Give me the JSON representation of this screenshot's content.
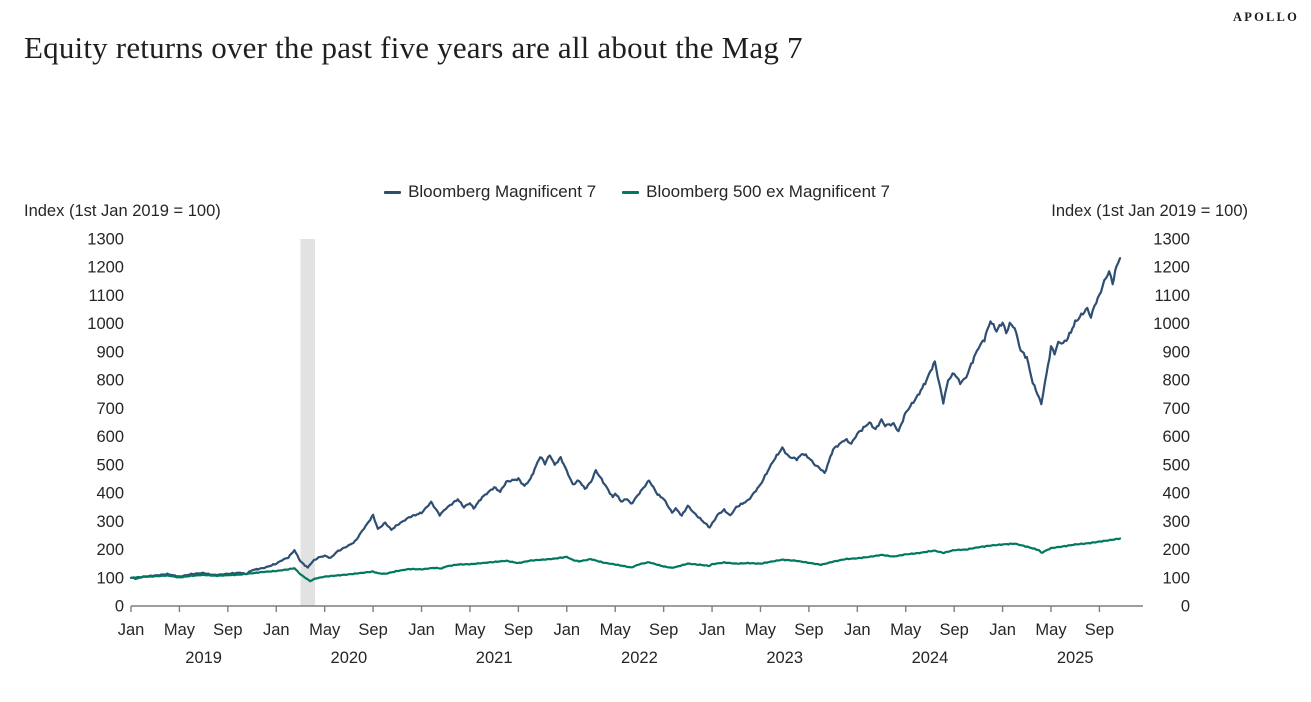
{
  "header": {
    "logo": "APOLLO",
    "title": "Equity returns over the past five years are all about the Mag 7"
  },
  "chart_data": {
    "type": "line",
    "title": "Equity returns over the past five years are all about the Mag 7",
    "y_axis": {
      "label": "Index (1st Jan 2019 = 100)",
      "min": 0,
      "max": 1300,
      "step": 100,
      "labels_on_both_sides": true
    },
    "x_axis": {
      "years": [
        "2019",
        "2020",
        "2021",
        "2022",
        "2023",
        "2024",
        "2025"
      ],
      "month_labels": [
        "Jan",
        "May",
        "Sep"
      ],
      "month_offsets": [
        0,
        4,
        8
      ],
      "domain_months": 83.6
    },
    "grid": false,
    "legend_position": "top-center",
    "recession_band": {
      "from_month": 14.0,
      "to_month": 15.2,
      "color": "#e2e2e2",
      "meaning": "Covid recession shading Feb-Mar 2020"
    },
    "axis_color": "#7f7f7f",
    "series": [
      {
        "name": "Bloomberg Magnificent 7",
        "color": "#2f4e73",
        "points": [
          [
            0,
            100
          ],
          [
            0.5,
            97
          ],
          [
            1,
            104
          ],
          [
            2,
            108
          ],
          [
            3,
            113
          ],
          [
            4,
            104
          ],
          [
            5,
            113
          ],
          [
            6,
            117
          ],
          [
            6.5,
            112
          ],
          [
            7,
            110
          ],
          [
            8,
            114
          ],
          [
            9,
            118
          ],
          [
            9.5,
            113
          ],
          [
            10,
            127
          ],
          [
            11,
            135
          ],
          [
            12,
            150
          ],
          [
            12.5,
            163
          ],
          [
            13,
            172
          ],
          [
            13.5,
            198
          ],
          [
            14,
            158
          ],
          [
            14.6,
            136
          ],
          [
            15,
            158
          ],
          [
            15.5,
            172
          ],
          [
            16,
            178
          ],
          [
            16.5,
            170
          ],
          [
            17,
            192
          ],
          [
            18,
            215
          ],
          [
            18.5,
            228
          ],
          [
            19,
            260
          ],
          [
            19.5,
            290
          ],
          [
            20,
            322
          ],
          [
            20.4,
            272
          ],
          [
            21,
            295
          ],
          [
            21.5,
            270
          ],
          [
            22,
            287
          ],
          [
            23,
            315
          ],
          [
            24,
            330
          ],
          [
            24.8,
            368
          ],
          [
            25.5,
            322
          ],
          [
            26,
            345
          ],
          [
            27,
            378
          ],
          [
            27.5,
            350
          ],
          [
            28,
            365
          ],
          [
            28.3,
            345
          ],
          [
            29,
            385
          ],
          [
            30,
            420
          ],
          [
            30.5,
            405
          ],
          [
            31,
            440
          ],
          [
            32,
            450
          ],
          [
            32.5,
            425
          ],
          [
            33,
            450
          ],
          [
            33.8,
            530
          ],
          [
            34.2,
            505
          ],
          [
            34.6,
            535
          ],
          [
            35,
            500
          ],
          [
            35.5,
            525
          ],
          [
            36,
            478
          ],
          [
            36.5,
            430
          ],
          [
            37,
            445
          ],
          [
            37.5,
            415
          ],
          [
            38,
            440
          ],
          [
            38.4,
            480
          ],
          [
            39,
            440
          ],
          [
            39.8,
            385
          ],
          [
            40,
            400
          ],
          [
            40.5,
            370
          ],
          [
            41,
            380
          ],
          [
            41.3,
            360
          ],
          [
            42,
            400
          ],
          [
            42.8,
            445
          ],
          [
            43.5,
            395
          ],
          [
            44,
            380
          ],
          [
            44.7,
            330
          ],
          [
            45,
            345
          ],
          [
            45.5,
            320
          ],
          [
            46,
            355
          ],
          [
            46.5,
            330
          ],
          [
            47,
            310
          ],
          [
            47.8,
            278
          ],
          [
            48.5,
            325
          ],
          [
            49,
            340
          ],
          [
            49.5,
            320
          ],
          [
            50,
            350
          ],
          [
            51,
            375
          ],
          [
            52,
            430
          ],
          [
            53,
            510
          ],
          [
            53.8,
            560
          ],
          [
            54.3,
            530
          ],
          [
            55,
            520
          ],
          [
            55.5,
            540
          ],
          [
            56,
            525
          ],
          [
            56.5,
            500
          ],
          [
            57,
            485
          ],
          [
            57.3,
            470
          ],
          [
            58,
            555
          ],
          [
            59,
            590
          ],
          [
            59.5,
            575
          ],
          [
            60,
            610
          ],
          [
            61,
            650
          ],
          [
            61.5,
            625
          ],
          [
            62,
            660
          ],
          [
            62.3,
            640
          ],
          [
            63,
            645
          ],
          [
            63.4,
            618
          ],
          [
            64,
            685
          ],
          [
            65,
            745
          ],
          [
            65.6,
            790
          ],
          [
            66.4,
            865
          ],
          [
            67.1,
            720
          ],
          [
            67.5,
            800
          ],
          [
            68,
            825
          ],
          [
            68.5,
            790
          ],
          [
            69,
            810
          ],
          [
            69.3,
            845
          ],
          [
            70,
            915
          ],
          [
            70.5,
            945
          ],
          [
            71,
            1010
          ],
          [
            71.5,
            975
          ],
          [
            72,
            1005
          ],
          [
            72.3,
            965
          ],
          [
            72.6,
            1000
          ],
          [
            73,
            985
          ],
          [
            73.5,
            905
          ],
          [
            74,
            880
          ],
          [
            74.5,
            790
          ],
          [
            75,
            740
          ],
          [
            75.2,
            712
          ],
          [
            75.5,
            790
          ],
          [
            76,
            915
          ],
          [
            76.3,
            895
          ],
          [
            76.6,
            935
          ],
          [
            77,
            930
          ],
          [
            77.4,
            950
          ],
          [
            78,
            1005
          ],
          [
            78.5,
            1030
          ],
          [
            79,
            1055
          ],
          [
            79.3,
            1020
          ],
          [
            79.6,
            1065
          ],
          [
            80,
            1100
          ],
          [
            80.4,
            1150
          ],
          [
            80.8,
            1185
          ],
          [
            81.1,
            1145
          ],
          [
            81.4,
            1200
          ],
          [
            81.7,
            1232
          ]
        ]
      },
      {
        "name": "Bloomberg 500 ex Magnificent 7",
        "color": "#00795e",
        "points": [
          [
            0,
            100
          ],
          [
            1,
            103
          ],
          [
            2,
            105
          ],
          [
            3,
            108
          ],
          [
            4,
            101
          ],
          [
            5,
            107
          ],
          [
            6,
            110
          ],
          [
            7,
            107
          ],
          [
            8,
            109
          ],
          [
            9,
            111
          ],
          [
            10,
            116
          ],
          [
            11,
            121
          ],
          [
            12,
            124
          ],
          [
            13,
            130
          ],
          [
            13.5,
            134
          ],
          [
            14,
            112
          ],
          [
            14.8,
            88
          ],
          [
            15.2,
            97
          ],
          [
            16,
            104
          ],
          [
            17,
            108
          ],
          [
            18,
            112
          ],
          [
            19,
            117
          ],
          [
            20,
            122
          ],
          [
            20.4,
            116
          ],
          [
            21,
            114
          ],
          [
            22,
            124
          ],
          [
            23,
            131
          ],
          [
            24,
            130
          ],
          [
            25,
            135
          ],
          [
            25.7,
            133
          ],
          [
            26,
            140
          ],
          [
            27,
            147
          ],
          [
            28,
            148
          ],
          [
            29,
            152
          ],
          [
            30,
            156
          ],
          [
            31,
            160
          ],
          [
            32,
            152
          ],
          [
            33,
            161
          ],
          [
            34,
            164
          ],
          [
            35,
            168
          ],
          [
            36,
            174
          ],
          [
            36.5,
            163
          ],
          [
            37,
            158
          ],
          [
            38,
            166
          ],
          [
            39,
            154
          ],
          [
            40,
            147
          ],
          [
            41,
            139
          ],
          [
            41.3,
            136
          ],
          [
            42,
            148
          ],
          [
            42.8,
            155
          ],
          [
            43.5,
            146
          ],
          [
            44,
            140
          ],
          [
            44.7,
            135
          ],
          [
            45,
            138
          ],
          [
            46,
            150
          ],
          [
            47,
            146
          ],
          [
            47.8,
            142
          ],
          [
            48,
            148
          ],
          [
            49,
            154
          ],
          [
            50,
            150
          ],
          [
            51,
            152
          ],
          [
            52,
            150
          ],
          [
            53,
            158
          ],
          [
            53.8,
            164
          ],
          [
            55,
            160
          ],
          [
            56,
            153
          ],
          [
            57,
            146
          ],
          [
            58,
            157
          ],
          [
            59,
            166
          ],
          [
            60,
            169
          ],
          [
            61,
            174
          ],
          [
            62,
            181
          ],
          [
            63,
            175
          ],
          [
            64,
            183
          ],
          [
            65,
            187
          ],
          [
            66,
            194
          ],
          [
            66.4,
            196
          ],
          [
            67.1,
            188
          ],
          [
            68,
            198
          ],
          [
            69,
            200
          ],
          [
            70,
            208
          ],
          [
            71,
            214
          ],
          [
            72,
            218
          ],
          [
            73,
            221
          ],
          [
            74,
            210
          ],
          [
            75,
            198
          ],
          [
            75.2,
            188
          ],
          [
            76,
            205
          ],
          [
            77,
            211
          ],
          [
            78,
            218
          ],
          [
            79,
            222
          ],
          [
            80,
            228
          ],
          [
            80.8,
            233
          ],
          [
            81.7,
            239
          ]
        ]
      }
    ]
  }
}
